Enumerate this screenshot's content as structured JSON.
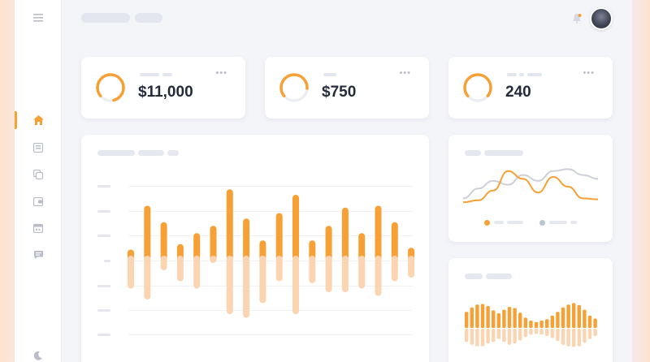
{
  "stats": [
    {
      "value": "$11,000",
      "ring_fraction": 0.82
    },
    {
      "value": "$750",
      "ring_fraction": 0.62
    },
    {
      "value": "240",
      "ring_fraction": 0.72
    }
  ],
  "colors": {
    "accent": "#f7a035",
    "accent_light": "#fbd4b2",
    "line_gray": "#c9ccd6",
    "text": "#262b3a"
  },
  "icons": {
    "sidebar": [
      "menu-icon",
      "home-icon",
      "inbox-icon",
      "copy-icon",
      "wallet-icon",
      "calendar-icon",
      "chat-icon",
      "moon-icon"
    ],
    "topbar": [
      "bell-icon",
      "avatar"
    ]
  },
  "chart_data": [
    {
      "type": "bar",
      "series": [
        {
          "values": [
            0.3,
            1.5,
            1.05,
            0.45,
            0.75,
            0.95,
            1.95,
            1.15,
            0.55,
            1.3,
            1.8,
            0.55,
            0.95,
            1.45,
            0.75,
            1.5,
            1.05,
            0.35
          ]
        },
        {
          "values": [
            -0.9,
            -1.2,
            -0.4,
            -0.7,
            -0.9,
            -0.2,
            -1.6,
            -1.7,
            -1.3,
            -0.7,
            -1.6,
            -0.75,
            -1.0,
            -1.0,
            -0.9,
            -1.1,
            -0.7,
            -0.6
          ]
        }
      ]
    },
    {
      "type": "line",
      "series": [
        {
          "values": [
            0.2,
            0.3,
            0.8,
            1.8,
            1.4,
            0.7,
            1.5,
            1.0,
            0.4,
            0.35
          ]
        },
        {
          "values": [
            0.4,
            0.9,
            1.3,
            1.1,
            1.6,
            1.3,
            1.8,
            1.9,
            1.6,
            1.4
          ]
        }
      ]
    },
    {
      "type": "bar",
      "series": [
        {
          "values": [
            0.55,
            0.7,
            0.8,
            0.82,
            0.75,
            0.6,
            0.5,
            0.62,
            0.72,
            0.68,
            0.52,
            0.35,
            0.25,
            0.2,
            0.25,
            0.3,
            0.42,
            0.55,
            0.7,
            0.8,
            0.85,
            0.78,
            0.62,
            0.42,
            0.32
          ]
        },
        {
          "values": [
            0.45,
            0.55,
            0.6,
            0.6,
            0.5,
            0.45,
            0.35,
            0.45,
            0.55,
            0.5,
            0.4,
            0.28,
            0.2,
            0.18,
            0.2,
            0.25,
            0.32,
            0.42,
            0.55,
            0.6,
            0.62,
            0.6,
            0.48,
            0.35,
            0.25
          ]
        }
      ]
    }
  ]
}
